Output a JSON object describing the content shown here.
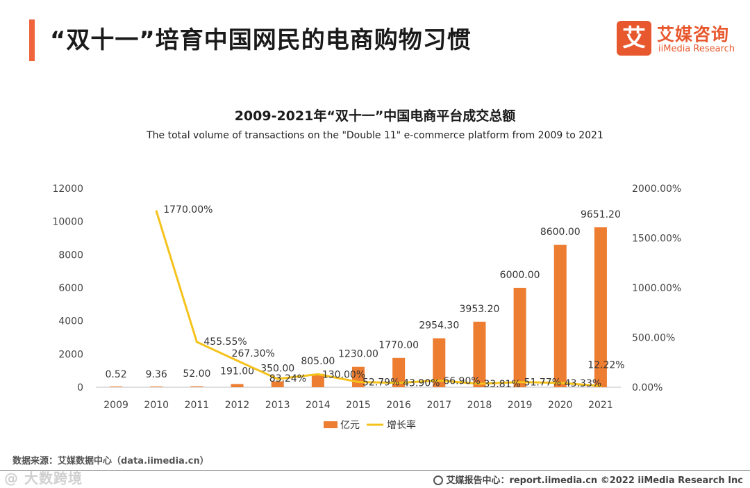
{
  "header": {
    "title": "“双十一”培育中国网民的电商购物习惯",
    "logo_mark": "艾",
    "logo_cn": "艾媒咨询",
    "logo_en": "iiMedia Research"
  },
  "colors": {
    "accent": "#f0643c",
    "bar": "#ed7d31",
    "line": "#f5c21b"
  },
  "chart_data": {
    "type": "bar",
    "title": "2009-2021年“双十一”中国电商平台成交总额",
    "subtitle": "The total volume of transactions on the \"Double 11\" e-commerce platform from 2009 to 2021",
    "categories": [
      "2009",
      "2010",
      "2011",
      "2012",
      "2013",
      "2014",
      "2015",
      "2016",
      "2017",
      "2018",
      "2019",
      "2020",
      "2021"
    ],
    "series": [
      {
        "name": "亿元",
        "type": "bar",
        "axis": "left",
        "values": [
          0.52,
          9.36,
          52.0,
          191.0,
          350.0,
          805.0,
          1230.0,
          1770.0,
          2954.3,
          3953.2,
          6000.0,
          8600.0,
          9651.2
        ],
        "labels": [
          "0.52",
          "9.36",
          "52.00",
          "191.00",
          "350.00",
          "805.00",
          "1230.00",
          "1770.00",
          "2954.30",
          "3953.20",
          "6000.00",
          "8600.00",
          "9651.20"
        ]
      },
      {
        "name": "增长率",
        "type": "line",
        "axis": "right",
        "values": [
          null,
          1770.0,
          455.55,
          267.3,
          83.24,
          130.0,
          52.79,
          43.9,
          66.9,
          33.81,
          51.77,
          43.33,
          12.22
        ],
        "labels": [
          "",
          "1770.00%",
          "455.55%",
          "267.30%",
          "83.24%",
          "130.00%",
          "52.79%",
          "43.90%",
          "66.90%",
          "33.81%",
          "51.77%",
          "43.33%",
          "12.22%"
        ]
      }
    ],
    "y_left": {
      "min": 0,
      "max": 12000,
      "ticks": [
        "0",
        "2000",
        "4000",
        "6000",
        "8000",
        "10000",
        "12000"
      ]
    },
    "y_right": {
      "min": 0,
      "max": 2000,
      "ticks": [
        "0.00%",
        "500.00%",
        "1000.00%",
        "1500.00%",
        "2000.00%"
      ]
    },
    "legend": [
      "亿元",
      "增长率"
    ],
    "legend_position": "bottom"
  },
  "footer": {
    "source": "数据来源：艾媒数据中心（data.iimedia.cn）",
    "watermark": "@ 大数跨境",
    "report_center": "艾媒报告中心：report.iimedia.cn  ©2022  iiMedia Research  Inc"
  }
}
